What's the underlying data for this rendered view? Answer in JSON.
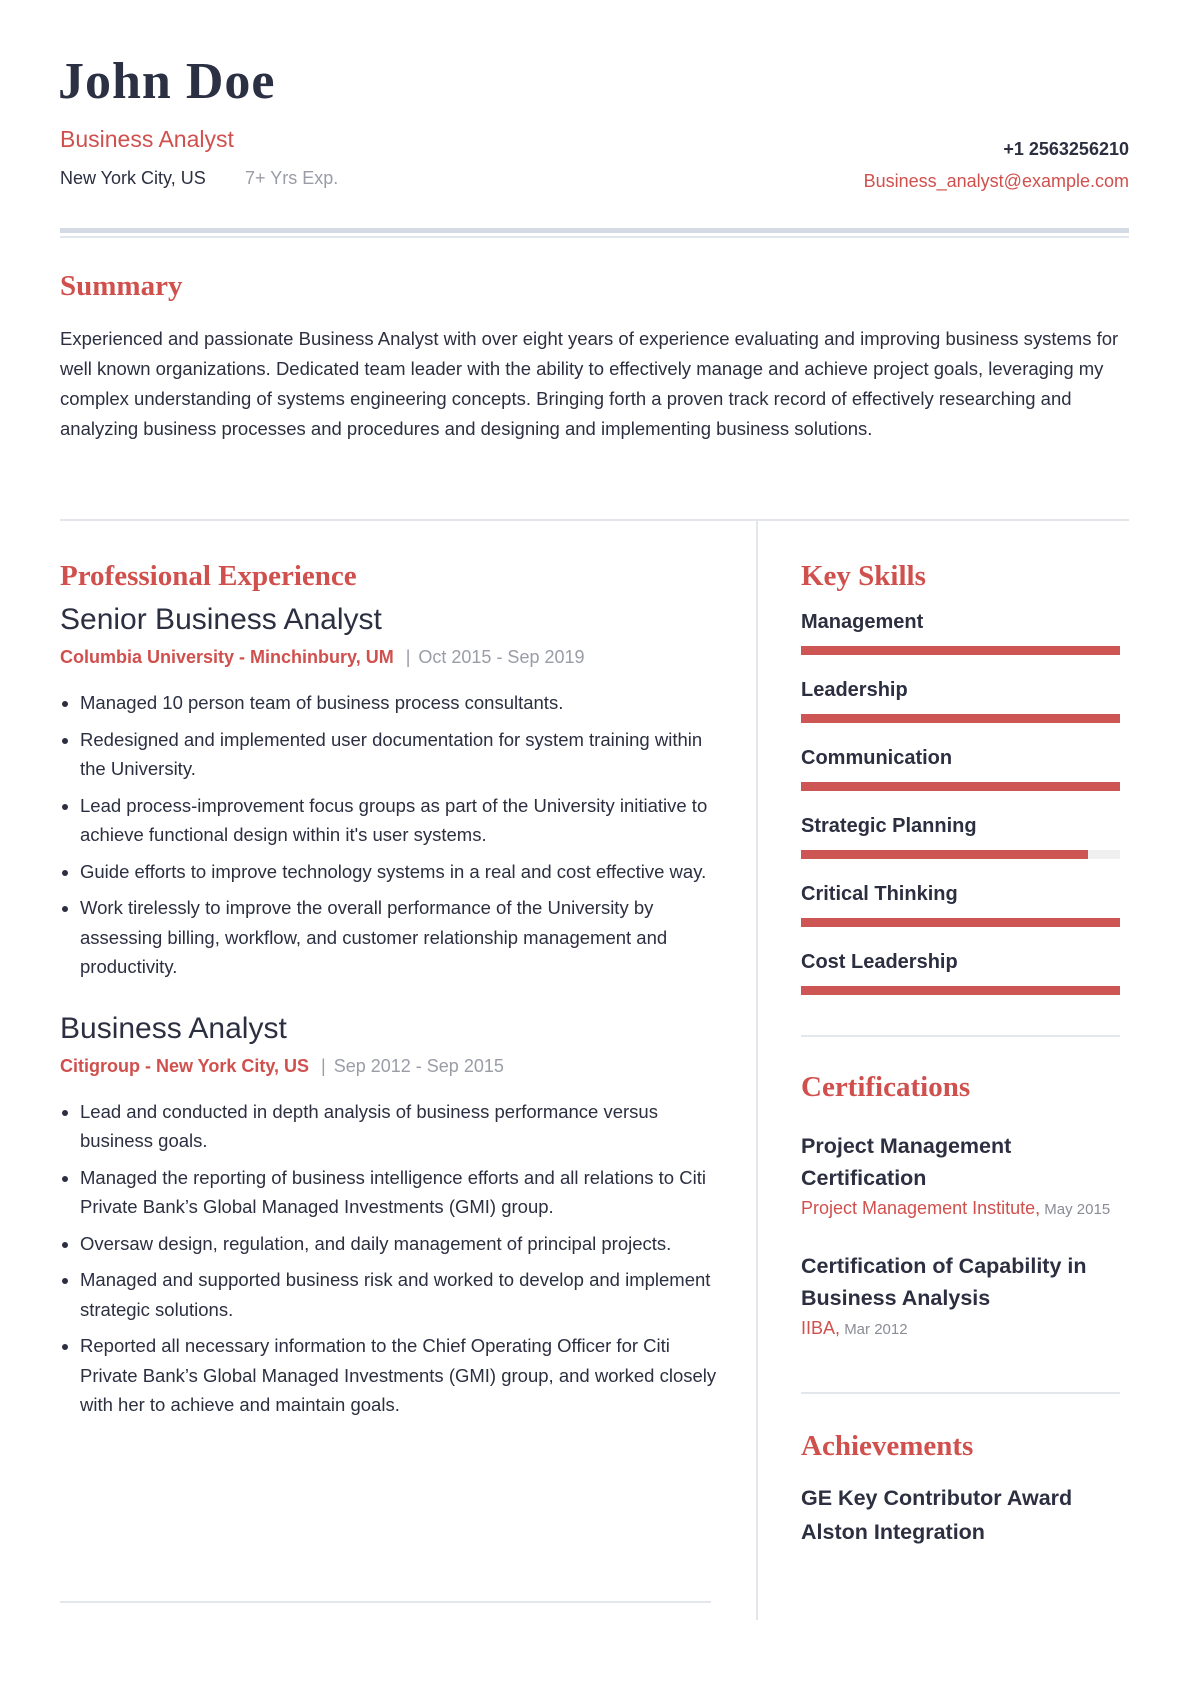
{
  "header": {
    "name": "John Doe",
    "title": "Business Analyst",
    "location": "New York City, US",
    "experience": "7+ Yrs Exp.",
    "phone": "+1 2563256210",
    "email": "Business_analyst@example.com"
  },
  "summary": {
    "heading": "Summary",
    "text": "Experienced and passionate Business Analyst with over eight years of experience evaluating and improving business systems for well known organizations. Dedicated team leader with the ability to effectively manage and achieve project goals, leveraging my complex understanding of systems engineering concepts. Bringing forth a proven track record of effectively researching and analyzing business processes and procedures and designing and implementing business solutions."
  },
  "experience": {
    "heading": "Professional Experience",
    "jobs": [
      {
        "title": "Senior Business Analyst",
        "company": "Columbia University - Minchinbury, UM",
        "dates": "Oct 2015 - Sep 2019",
        "bullets": [
          "Managed 10 person team of business process consultants.",
          "Redesigned and implemented user documentation for system training within the University.",
          "Lead process-improvement focus groups as part of the University initiative to achieve functional design within it's user systems.",
          "Guide efforts to improve technology systems in a real and cost effective way.",
          "Work tirelessly to improve the overall performance of the University by assessing billing, workflow, and customer relationship management and productivity."
        ]
      },
      {
        "title": "Business Analyst",
        "company": "Citigroup - New York City, US",
        "dates": "Sep 2012 - Sep 2015",
        "bullets": [
          "Lead and conducted in depth analysis of business performance versus business goals.",
          "Managed the reporting of business intelligence efforts and all relations to Citi Private Bank’s Global Managed Investments (GMI) group.",
          "Oversaw design, regulation, and daily management of principal projects.",
          "Managed and supported business risk and worked to develop and implement strategic solutions.",
          "Reported all necessary information to the Chief Operating Officer for Citi Private Bank’s Global Managed Investments (GMI) group, and worked closely with her to achieve and maintain goals."
        ]
      }
    ]
  },
  "skills": {
    "heading": "Key Skills",
    "items": [
      {
        "label": "Management",
        "level": 100
      },
      {
        "label": "Leadership",
        "level": 100
      },
      {
        "label": "Communication",
        "level": 100
      },
      {
        "label": "Strategic Planning",
        "level": 90
      },
      {
        "label": "Critical Thinking",
        "level": 100
      },
      {
        "label": "Cost Leadership",
        "level": 100
      }
    ]
  },
  "certifications": {
    "heading": "Certifications",
    "items": [
      {
        "name": "Project Management Certification",
        "org": "Project Management Institute,",
        "date": "May 2015"
      },
      {
        "name": "Certification of Capability in Business Analysis",
        "org": "IIBA,",
        "date": "Mar 2012"
      }
    ]
  },
  "achievements": {
    "heading": "Achievements",
    "items": [
      "GE Key Contributor Award Alston Integration"
    ]
  },
  "colors": {
    "accent": "#d0504d",
    "text": "#2b2f40",
    "muted": "#9a9ca6"
  }
}
